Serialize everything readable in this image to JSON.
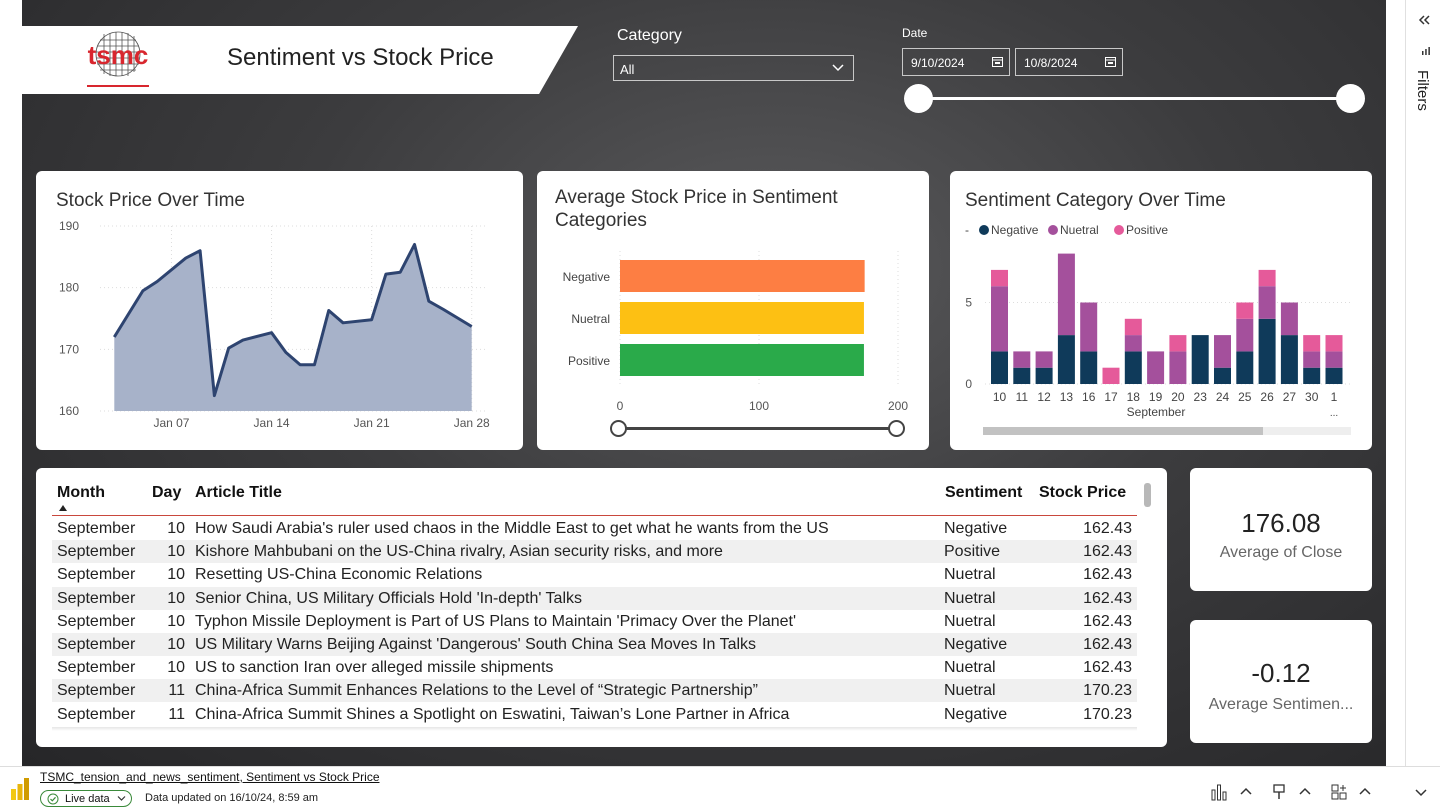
{
  "header": {
    "title": "Sentiment vs Stock Price",
    "logo_text": "tsmc"
  },
  "filters": {
    "category_label": "Category",
    "category_value": "All",
    "date_label": "Date",
    "date_start": "9/10/2024",
    "date_end": "10/8/2024"
  },
  "stock_chart": {
    "title": "Stock Price Over Time",
    "chart_data": {
      "type": "area",
      "y_ticks": [
        "190",
        "180",
        "170",
        "160"
      ],
      "x_ticks": [
        "Jan 07",
        "Jan 14",
        "Jan 21",
        "Jan 28"
      ],
      "ylim": [
        160,
        190
      ],
      "x": [
        1,
        3,
        4,
        6,
        7,
        8,
        9,
        10,
        12,
        13,
        14,
        15,
        16,
        17,
        19,
        20,
        21,
        22,
        23,
        24,
        26
      ],
      "values": [
        172,
        179.5,
        181,
        184.8,
        186,
        162.5,
        170.2,
        171.5,
        172.7,
        169.5,
        167.5,
        167.5,
        176.3,
        174.3,
        174.8,
        182.2,
        182.5,
        187,
        177.8,
        176.5,
        173.7
      ],
      "color": "#a7b2c9",
      "line_color": "#2e4470"
    }
  },
  "avg_chart": {
    "title_line1": "Average Stock Price in Sentiment",
    "title_line2": "Categories",
    "chart_data": {
      "type": "bar",
      "orientation": "horizontal",
      "categories": [
        "Negative",
        "Nuetral",
        "Positive"
      ],
      "values": [
        176,
        175.5,
        175.5
      ],
      "colors": [
        "#fd7e43",
        "#fdc013",
        "#2aaa4a"
      ],
      "x_ticks": [
        "0",
        "100",
        "200"
      ],
      "xlim": [
        0,
        200
      ]
    }
  },
  "sentiment_chart": {
    "title": "Sentiment Category Over Time",
    "legend_dash": "-",
    "chart_data": {
      "type": "bar",
      "stacked": true,
      "categories": [
        "10",
        "11",
        "12",
        "13",
        "16",
        "17",
        "18",
        "19",
        "20",
        "23",
        "24",
        "25",
        "26",
        "27",
        "30",
        "1"
      ],
      "category_more": "...",
      "xlabel": "September",
      "y_ticks": [
        "5",
        "0"
      ],
      "ylim": [
        0,
        8
      ],
      "series": [
        {
          "name": "Negative",
          "color": "#0f3a5a",
          "values": [
            2,
            1,
            1,
            3,
            2,
            0,
            2,
            0,
            0,
            3,
            1,
            2,
            4,
            3,
            1,
            1
          ]
        },
        {
          "name": "Nuetral",
          "color": "#a4509c",
          "values": [
            4,
            1,
            1,
            5,
            3,
            0,
            1,
            2,
            2,
            0,
            2,
            2,
            2,
            2,
            1,
            1
          ]
        },
        {
          "name": "Positive",
          "color": "#e55a9a",
          "values": [
            1,
            0,
            0,
            0,
            0,
            1,
            1,
            0,
            1,
            0,
            0,
            1,
            1,
            0,
            1,
            1
          ]
        }
      ]
    }
  },
  "table": {
    "headers": {
      "month": "Month",
      "day": "Day",
      "title": "Article Title",
      "sentiment": "Sentiment",
      "price": "Stock Price"
    },
    "rows": [
      {
        "month": "September",
        "day": "10",
        "title": "How Saudi Arabia's ruler used chaos in the Middle East to get what he wants from the US",
        "sentiment": "Negative",
        "price": "162.43"
      },
      {
        "month": "September",
        "day": "10",
        "title": "Kishore Mahbubani on the US-China rivalry, Asian security risks, and more",
        "sentiment": "Positive",
        "price": "162.43"
      },
      {
        "month": "September",
        "day": "10",
        "title": "Resetting US-China Economic Relations",
        "sentiment": "Nuetral",
        "price": "162.43"
      },
      {
        "month": "September",
        "day": "10",
        "title": "Senior China, US Military Officials Hold 'In-depth' Talks",
        "sentiment": "Nuetral",
        "price": "162.43"
      },
      {
        "month": "September",
        "day": "10",
        "title": "Typhon Missile Deployment is Part of US Plans to Maintain 'Primacy Over the Planet'",
        "sentiment": "Nuetral",
        "price": "162.43"
      },
      {
        "month": "September",
        "day": "10",
        "title": "US Military Warns Beijing Against 'Dangerous' South China Sea Moves In Talks",
        "sentiment": "Negative",
        "price": "162.43"
      },
      {
        "month": "September",
        "day": "10",
        "title": "US to sanction Iran over alleged missile shipments",
        "sentiment": "Nuetral",
        "price": "162.43"
      },
      {
        "month": "September",
        "day": "11",
        "title": "China-Africa Summit Enhances Relations to the Level of “Strategic Partnership”",
        "sentiment": "Nuetral",
        "price": "170.23"
      },
      {
        "month": "September",
        "day": "11",
        "title": "China-Africa Summit Shines a Spotlight on Eswatini, Taiwan’s Lone Partner in Africa",
        "sentiment": "Negative",
        "price": "170.23"
      }
    ]
  },
  "kpi_close": {
    "value": "176.08",
    "label": "Average of Close"
  },
  "kpi_sentiment": {
    "value": "-0.12",
    "label": "Average Sentimen..."
  },
  "side_pane": {
    "label": "Filters"
  },
  "footer": {
    "report_title": "TSMC_tension_and_news_sentiment, Sentiment vs Stock Price",
    "live": "Live data",
    "updated": "Data updated on 16/10/24, 8:59 am"
  }
}
